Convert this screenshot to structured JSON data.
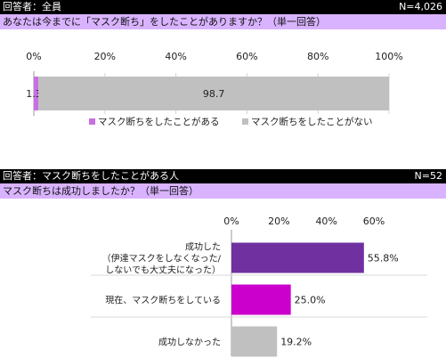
{
  "section1": {
    "respondent": "回答者：全員",
    "n": "N=4,026",
    "question": "あなたは今までに「マスク断ち」をしたことがありますか？（単一回答）"
  },
  "section2": {
    "respondent": "回答者：マスク断ちをしたことがある人",
    "n": "N=52",
    "question": "マスク断ちは成功しましたか？（単一回答）"
  },
  "colors": {
    "purple_light": "#c86fe3",
    "gray": "#c0c0c0",
    "purple_dark": "#7030a0",
    "magenta": "#cc00cc",
    "header_bg": "#000000",
    "question_bg": "#d9b3ff"
  },
  "chart_data": [
    {
      "type": "bar",
      "orientation": "horizontal-stacked",
      "x_ticks": [
        "0%",
        "20%",
        "40%",
        "60%",
        "80%",
        "100%"
      ],
      "xlim": [
        0,
        100
      ],
      "series": [
        {
          "name": "マスク断ちをしたことがある",
          "value": 1.3,
          "label": "1.3",
          "color": "#c86fe3"
        },
        {
          "name": "マスク断ちをしたことがない",
          "value": 98.7,
          "label": "98.7",
          "color": "#c0c0c0"
        }
      ],
      "legend_position": "bottom"
    },
    {
      "type": "bar",
      "orientation": "horizontal",
      "x_ticks": [
        "0%",
        "20%",
        "40%",
        "60%"
      ],
      "xlim": [
        0,
        60
      ],
      "categories": [
        [
          "成功した",
          "（伊達マスクをしなくなった/",
          "しないでも大丈夫になった）"
        ],
        [
          "現在、マスク断ちをしている"
        ],
        [
          "成功しなかった"
        ]
      ],
      "values": [
        55.8,
        25.0,
        19.2
      ],
      "value_labels": [
        "55.8%",
        "25.0%",
        "19.2%"
      ],
      "colors": [
        "#7030a0",
        "#cc00cc",
        "#c0c0c0"
      ]
    }
  ]
}
